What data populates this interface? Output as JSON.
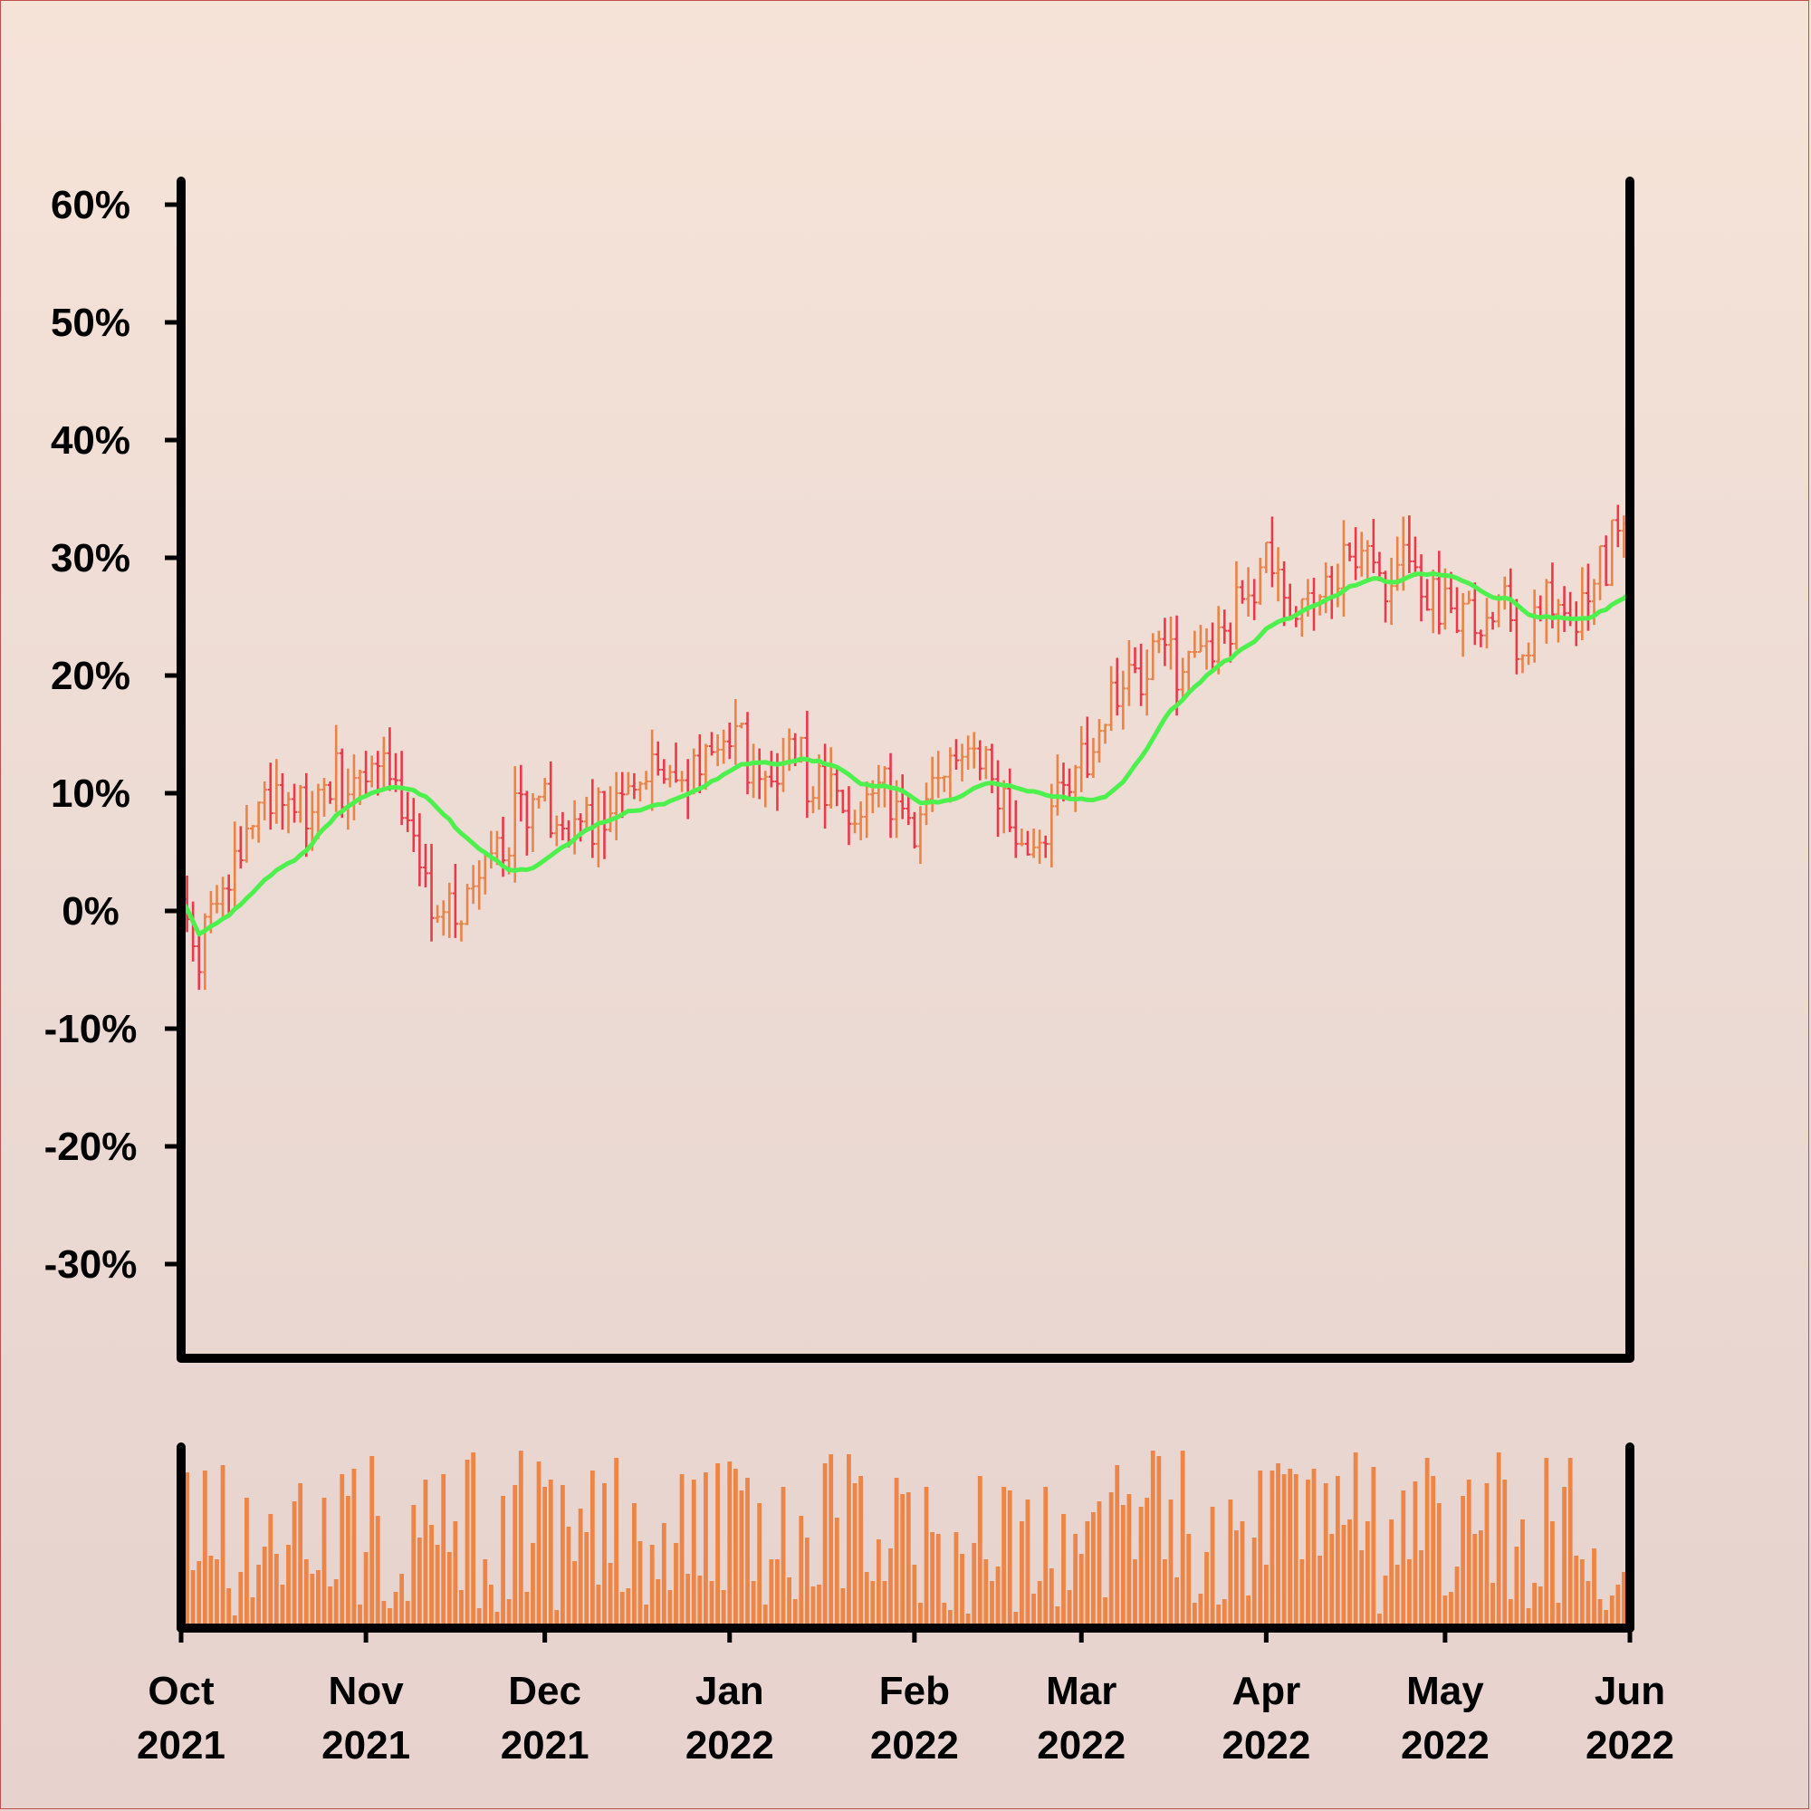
{
  "chart_data": [
    {
      "type": "ohlc",
      "title": "",
      "xlabel": "",
      "ylabel": "",
      "x_range": [
        "2021-10-01",
        "2022-06-01"
      ],
      "ylim": [
        -38,
        62
      ],
      "y_ticks": [
        60,
        50,
        40,
        30,
        20,
        10,
        0,
        -10,
        -20,
        -30
      ],
      "y_tick_labels": [
        "60%",
        "50%",
        "40%",
        "30%",
        "20%",
        "10%",
        "0%",
        "-10%",
        "-20%",
        "-30%"
      ],
      "grid": false,
      "colors": {
        "up": "#e8844a",
        "down": "#e83a4a",
        "moving_average": "#4ef04e",
        "volume": "#ec8546",
        "axis": "#000000"
      },
      "close_anchors": [
        [
          "2021-10-01",
          0
        ],
        [
          "2021-10-04",
          -4
        ],
        [
          "2021-10-08",
          3
        ],
        [
          "2021-10-13",
          7
        ],
        [
          "2021-10-18",
          10
        ],
        [
          "2021-10-22",
          9
        ],
        [
          "2021-10-27",
          11
        ],
        [
          "2021-11-01",
          10
        ],
        [
          "2021-11-05",
          12
        ],
        [
          "2021-11-09",
          5
        ],
        [
          "2021-11-13",
          0
        ],
        [
          "2021-11-17",
          1
        ],
        [
          "2021-11-22",
          3
        ],
        [
          "2021-11-26",
          8
        ],
        [
          "2021-12-01",
          9
        ],
        [
          "2021-12-05",
          6
        ],
        [
          "2021-12-09",
          7
        ],
        [
          "2021-12-14",
          12
        ],
        [
          "2021-12-18",
          11
        ],
        [
          "2021-12-23",
          10
        ],
        [
          "2021-12-28",
          12
        ],
        [
          "2022-01-02",
          14
        ],
        [
          "2022-01-06",
          12
        ],
        [
          "2022-01-11",
          14
        ],
        [
          "2022-01-16",
          10
        ],
        [
          "2022-01-21",
          9
        ],
        [
          "2022-01-26",
          11
        ],
        [
          "2022-02-01",
          8
        ],
        [
          "2022-02-05",
          10
        ],
        [
          "2022-02-10",
          15
        ],
        [
          "2022-02-14",
          10
        ],
        [
          "2022-02-18",
          8
        ],
        [
          "2022-02-22",
          5
        ],
        [
          "2022-02-26",
          11
        ],
        [
          "2022-03-02",
          12
        ],
        [
          "2022-03-06",
          19
        ],
        [
          "2022-03-11",
          20
        ],
        [
          "2022-03-16",
          21
        ],
        [
          "2022-03-21",
          21
        ],
        [
          "2022-03-26",
          25
        ],
        [
          "2022-04-01",
          29
        ],
        [
          "2022-04-06",
          27
        ],
        [
          "2022-04-11",
          28
        ],
        [
          "2022-04-16",
          30
        ],
        [
          "2022-04-21",
          28
        ],
        [
          "2022-04-26",
          29
        ],
        [
          "2022-05-01",
          25
        ],
        [
          "2022-05-05",
          24
        ],
        [
          "2022-05-10",
          27
        ],
        [
          "2022-05-13",
          23
        ],
        [
          "2022-05-18",
          26
        ],
        [
          "2022-05-23",
          25
        ],
        [
          "2022-05-28",
          30
        ],
        [
          "2022-06-01",
          33
        ]
      ],
      "ohlc": [],
      "moving_average": [],
      "moving_average_window": 20
    },
    {
      "type": "bar",
      "title": "",
      "x_range": [
        "2021-10-01",
        "2022-06-01"
      ],
      "x_tick_labels": [
        [
          "Oct",
          "2021"
        ],
        [
          "Nov",
          "2021"
        ],
        [
          "Dec",
          "2021"
        ],
        [
          "Jan",
          "2022"
        ],
        [
          "Feb",
          "2022"
        ],
        [
          "Mar",
          "2022"
        ],
        [
          "Apr",
          "2022"
        ],
        [
          "May",
          "2022"
        ],
        [
          "Jun",
          "2022"
        ]
      ],
      "x_tick_dates": [
        "2021-10-01",
        "2021-11-01",
        "2021-12-01",
        "2022-01-01",
        "2022-02-01",
        "2022-03-01",
        "2022-04-01",
        "2022-05-01",
        "2022-06-01"
      ],
      "relative_volume": []
    }
  ]
}
